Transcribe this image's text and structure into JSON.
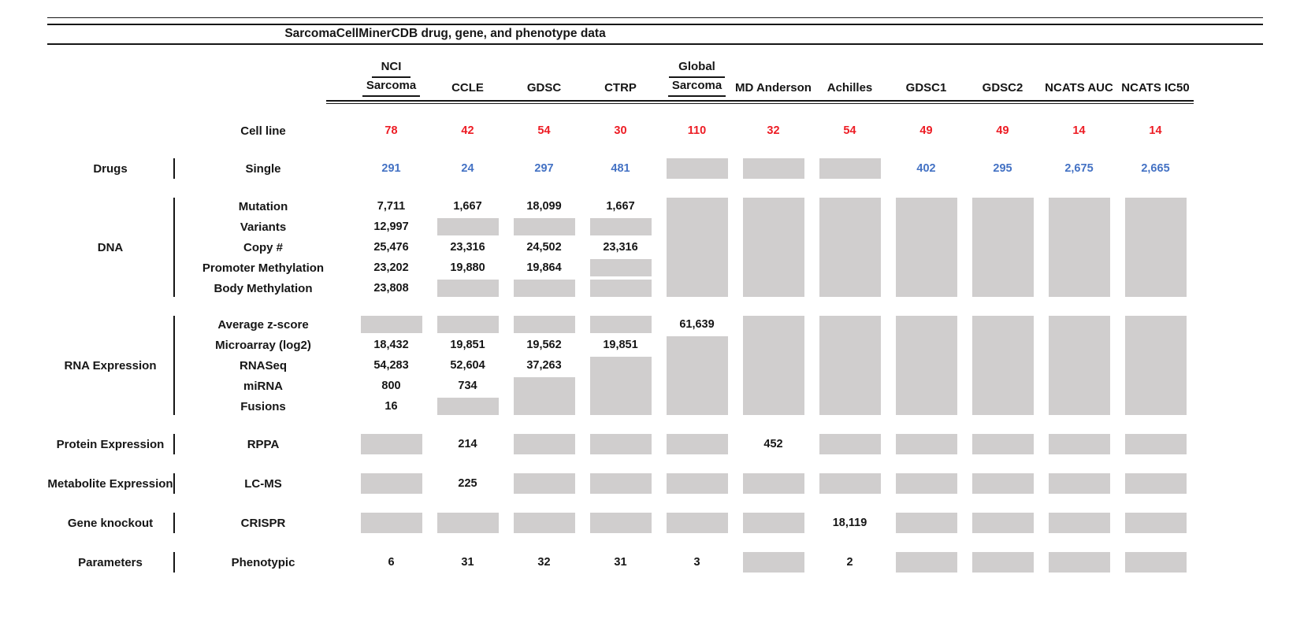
{
  "title": "SarcomaCellMinerCDB drug, gene, and phenotype data",
  "colors": {
    "red": "#ed1c24",
    "blue": "#4472c4",
    "gray_box": "#d0cece",
    "ink": "#161616"
  },
  "chart_data": {
    "type": "table",
    "title": "SarcomaCellMinerCDB drug, gene, and phenotype data",
    "gray_cell_encoding": "GRAY = shaded box with no number; GRAYn = shaded box spanning n rows; empty string = covered by a span above",
    "columns": [
      {
        "top": "NCI",
        "label": "Sarcoma"
      },
      {
        "top": "",
        "label": "CCLE"
      },
      {
        "top": "",
        "label": "GDSC"
      },
      {
        "top": "",
        "label": "CTRP"
      },
      {
        "top": "Global",
        "label": "Sarcoma"
      },
      {
        "top": "",
        "label": "MD Anderson"
      },
      {
        "top": "",
        "label": "Achilles"
      },
      {
        "top": "",
        "label": "GDSC1"
      },
      {
        "top": "",
        "label": "GDSC2"
      },
      {
        "top": "",
        "label": "NCATS AUC"
      },
      {
        "top": "",
        "label": "NCATS IC50"
      }
    ],
    "cell_line_row": {
      "label": "Cell line",
      "color": "red",
      "cells": [
        "78",
        "42",
        "54",
        "30",
        "110",
        "32",
        "54",
        "49",
        "49",
        "14",
        "14"
      ]
    },
    "sections": [
      {
        "category": "Drugs",
        "rows": [
          {
            "label": "Single",
            "color": "blue",
            "cells": [
              "291",
              "24",
              "297",
              "481",
              "GRAY",
              "GRAY",
              "GRAY",
              "402",
              "295",
              "2,675",
              "2,665"
            ]
          }
        ]
      },
      {
        "category": "DNA",
        "rows": [
          {
            "label": "Mutation",
            "cells": [
              "7,711",
              "1,667",
              "18,099",
              "1,667",
              "GRAY5",
              "GRAY5",
              "GRAY5",
              "GRAY5",
              "GRAY5",
              "GRAY5",
              "GRAY5"
            ]
          },
          {
            "label": "Variants",
            "cells": [
              "12,997",
              "GRAY",
              "GRAY",
              "GRAY",
              "",
              "",
              "",
              "",
              "",
              "",
              ""
            ]
          },
          {
            "label": "Copy #",
            "cells": [
              "25,476",
              "23,316",
              "24,502",
              "23,316",
              "",
              "",
              "",
              "",
              "",
              "",
              ""
            ]
          },
          {
            "label": "Promoter Methylation",
            "cells": [
              "23,202",
              "19,880",
              "19,864",
              "GRAY",
              "",
              "",
              "",
              "",
              "",
              "",
              ""
            ]
          },
          {
            "label": "Body Methylation",
            "cells": [
              "23,808",
              "GRAY",
              "GRAY",
              "GRAY",
              "",
              "",
              "",
              "",
              "",
              "",
              ""
            ]
          }
        ]
      },
      {
        "category": "RNA Expression",
        "rows": [
          {
            "label": "Average z-score",
            "cells": [
              "GRAY",
              "GRAY",
              "GRAY",
              "GRAY",
              "61,639",
              "GRAY5",
              "GRAY5",
              "GRAY5",
              "GRAY5",
              "GRAY5",
              "GRAY5"
            ]
          },
          {
            "label": "Microarray (log2)",
            "cells": [
              "18,432",
              "19,851",
              "19,562",
              "19,851",
              "GRAY4",
              "",
              "",
              "",
              "",
              "",
              ""
            ]
          },
          {
            "label": "RNASeq",
            "cells": [
              "54,283",
              "52,604",
              "37,263",
              "GRAY3",
              "",
              "",
              "",
              "",
              "",
              "",
              ""
            ]
          },
          {
            "label": "miRNA",
            "cells": [
              "800",
              "734",
              "GRAY2",
              "",
              "",
              "",
              "",
              "",
              "",
              "",
              ""
            ]
          },
          {
            "label": "Fusions",
            "cells": [
              "16",
              "GRAY",
              "",
              "",
              "",
              "",
              "",
              "",
              "",
              "",
              ""
            ]
          }
        ]
      },
      {
        "category": "Protein Expression",
        "rows": [
          {
            "label": "RPPA",
            "cells": [
              "GRAY",
              "214",
              "GRAY",
              "GRAY",
              "GRAY",
              "452",
              "GRAY",
              "GRAY",
              "GRAY",
              "GRAY",
              "GRAY"
            ]
          }
        ]
      },
      {
        "category": "Metabolite Expression",
        "rows": [
          {
            "label": "LC-MS",
            "cells": [
              "GRAY",
              "225",
              "GRAY",
              "GRAY",
              "GRAY",
              "GRAY",
              "GRAY",
              "GRAY",
              "GRAY",
              "GRAY",
              "GRAY"
            ]
          }
        ]
      },
      {
        "category": "Gene knockout",
        "rows": [
          {
            "label": "CRISPR",
            "cells": [
              "GRAY",
              "GRAY",
              "GRAY",
              "GRAY",
              "GRAY",
              "GRAY",
              "18,119",
              "GRAY",
              "GRAY",
              "GRAY",
              "GRAY"
            ]
          }
        ]
      },
      {
        "category": "Parameters",
        "rows": [
          {
            "label": "Phenotypic",
            "cells": [
              "6",
              "31",
              "32",
              "31",
              "3",
              "GRAY",
              "2",
              "GRAY",
              "GRAY",
              "GRAY",
              "GRAY"
            ]
          }
        ]
      }
    ]
  }
}
